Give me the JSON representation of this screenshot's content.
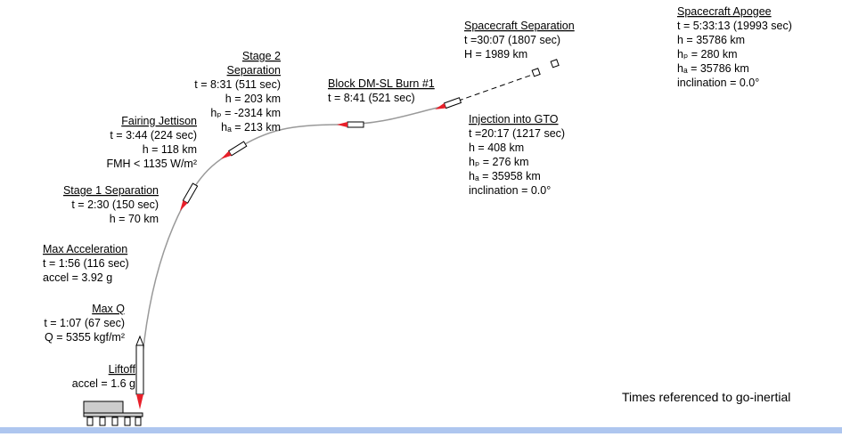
{
  "events": [
    {
      "title": "Liftoff",
      "lines": [
        "accel = 1.6 g"
      ]
    },
    {
      "title": "Max Q",
      "lines": [
        "t = 1:07 (67 sec)",
        "Q = 5355 kgf/m²"
      ]
    },
    {
      "title": "Max Acceleration",
      "lines": [
        "t = 1:56 (116 sec)",
        "accel = 3.92 g"
      ]
    },
    {
      "title": "Stage 1 Separation",
      "lines": [
        "t = 2:30 (150 sec)",
        "h = 70 km"
      ]
    },
    {
      "title": "Fairing Jettison",
      "lines": [
        "t = 3:44 (224 sec)",
        "h = 118 km",
        "FMH < 1135 W/m²"
      ]
    },
    {
      "title": "Stage 2\nSeparation",
      "lines": [
        "t = 8:31 (511 sec)",
        "h = 203 km",
        "hₚ = -2314 km",
        "hₐ = 213 km"
      ]
    },
    {
      "title": "Block DM-SL Burn #1",
      "lines": [
        "t = 8:41 (521 sec)"
      ]
    },
    {
      "title": "Spacecraft Separation",
      "lines": [
        "t =30:07 (1807 sec)",
        "H = 1989 km"
      ]
    },
    {
      "title": "Injection into GTO",
      "lines": [
        "t =20:17 (1217 sec)",
        "h = 408 km",
        "hₚ = 276 km",
        "hₐ = 35958 km",
        "inclination = 0.0°"
      ]
    },
    {
      "title": "Spacecraft Apogee",
      "lines": [
        "t = 5:33:13 (19993 sec)",
        "h = 35786 km",
        "hₚ = 280 km",
        "hₐ = 35786 km",
        "inclination = 0.0°"
      ]
    }
  ],
  "note": "Times referenced to go-inertial"
}
